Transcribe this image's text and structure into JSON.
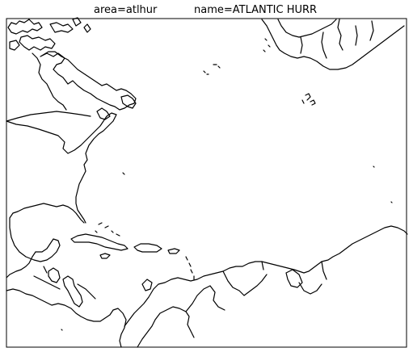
{
  "title": {
    "area_text": "area=atlhur",
    "name_text": "name=ATLANTIC HURR"
  },
  "colors": {
    "background": "#ffffff",
    "coastline": "#000000",
    "frame": "#000000"
  }
}
